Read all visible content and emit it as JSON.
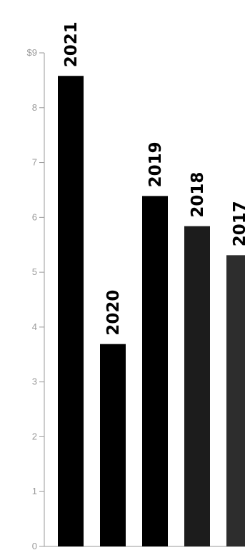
{
  "chart_data": {
    "type": "bar",
    "categories": [
      "2021",
      "2020",
      "2019",
      "2018",
      "2017"
    ],
    "values": [
      8.58,
      3.69,
      6.39,
      5.84,
      5.31
    ],
    "data_labels": [
      "2021",
      "2020",
      "2019",
      "2018",
      "2017"
    ],
    "bar_colors": [
      "#000000",
      "#000000",
      "#000000",
      "#1c1c1c",
      "#2d2d2d"
    ],
    "ylim": [
      0,
      9
    ],
    "y_ticks": [
      {
        "value": 0,
        "label": "0"
      },
      {
        "value": 1,
        "label": "1"
      },
      {
        "value": 2,
        "label": "2"
      },
      {
        "value": 3,
        "label": "3"
      },
      {
        "value": 4,
        "label": "4"
      },
      {
        "value": 5,
        "label": "5"
      },
      {
        "value": 6,
        "label": "6"
      },
      {
        "value": 7,
        "label": "7"
      },
      {
        "value": 8,
        "label": "8"
      },
      {
        "value": 9,
        "label": "$9"
      }
    ],
    "axis_color": "#9a9a9a",
    "grid": false,
    "legend": "none"
  }
}
